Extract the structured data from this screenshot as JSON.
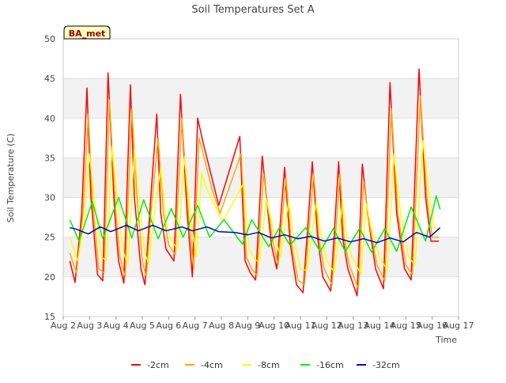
{
  "chart_data": {
    "type": "line",
    "title": "Soil Temperatures Set A",
    "xlabel": "Time",
    "ylabel": "Soil Temperature (C)",
    "ylim": [
      15,
      50
    ],
    "xlim": [
      2.0,
      17.0
    ],
    "yticks": [
      15,
      20,
      25,
      30,
      35,
      40,
      45,
      50
    ],
    "xticks": [
      2,
      3,
      4,
      5,
      6,
      7,
      8,
      9,
      10,
      11,
      12,
      13,
      14,
      15,
      16,
      17
    ],
    "xtick_labels": [
      "Aug 2",
      "Aug 3",
      "Aug 4",
      "Aug 5",
      "Aug 6",
      "Aug 7",
      "Aug 8",
      "Aug 9",
      "Aug 10",
      "Aug 11",
      "Aug 12",
      "Aug 13",
      "Aug 14",
      "Aug 15",
      "Aug 16",
      "Aug 17"
    ],
    "bands": [
      [
        20,
        25
      ],
      [
        30,
        35
      ],
      [
        40,
        45
      ]
    ],
    "grid": true,
    "legend_position": "bottom",
    "annotation": "BA_met",
    "series": [
      {
        "name": "-2cm",
        "color": "#ff0000",
        "x": [
          2.25,
          2.45,
          2.7,
          2.9,
          3.05,
          3.3,
          3.5,
          3.7,
          3.95,
          4.1,
          4.3,
          4.55,
          4.7,
          4.95,
          5.1,
          5.3,
          5.55,
          5.7,
          5.9,
          6.2,
          6.45,
          6.7,
          6.9,
          7.1,
          7.3,
          7.6,
          7.9,
          8.7,
          8.9,
          9.1,
          9.3,
          9.55,
          9.9,
          10.1,
          10.4,
          10.6,
          10.85,
          11.1,
          11.45,
          11.65,
          11.85,
          12.15,
          12.45,
          12.6,
          12.8,
          13.15,
          13.35,
          13.55,
          13.85,
          14.15,
          14.4,
          14.65,
          14.95,
          15.2,
          15.5,
          15.75,
          15.95,
          16.25
        ],
        "y": [
          22.0,
          19.3,
          28.0,
          43.8,
          30.0,
          20.3,
          19.5,
          45.7,
          28.0,
          22.0,
          19.2,
          44.2,
          30.0,
          21.0,
          19.0,
          29.0,
          40.5,
          28.0,
          23.5,
          22.0,
          43.0,
          28.0,
          20.0,
          40.0,
          37.0,
          33.0,
          29.0,
          37.7,
          22.0,
          20.5,
          19.6,
          35.2,
          24.0,
          21.0,
          33.8,
          24.5,
          19.0,
          18.0,
          34.5,
          25.0,
          20.0,
          18.2,
          34.5,
          25.0,
          21.0,
          17.6,
          34.2,
          28.0,
          21.0,
          18.5,
          44.5,
          28.0,
          21.0,
          19.6,
          46.2,
          30.0,
          24.5,
          24.5
        ]
      },
      {
        "name": "-4cm",
        "color": "#ffa500",
        "x": [
          2.25,
          2.5,
          2.75,
          2.95,
          3.1,
          3.35,
          3.55,
          3.75,
          4.0,
          4.15,
          4.35,
          4.6,
          4.8,
          5.0,
          5.15,
          5.35,
          5.6,
          5.8,
          6.0,
          6.25,
          6.5,
          6.75,
          6.95,
          7.15,
          7.35,
          7.65,
          7.95,
          8.75,
          8.95,
          9.15,
          9.35,
          9.6,
          9.95,
          10.15,
          10.45,
          10.65,
          10.9,
          11.15,
          11.5,
          11.7,
          11.9,
          12.2,
          12.5,
          12.65,
          12.85,
          13.2,
          13.4,
          13.6,
          13.9,
          14.2,
          14.45,
          14.7,
          15.0,
          15.25,
          15.55,
          15.8,
          16.0,
          16.25
        ],
        "y": [
          23.0,
          20.5,
          28.0,
          40.5,
          30.0,
          21.0,
          20.5,
          42.3,
          28.0,
          22.5,
          20.0,
          41.2,
          30.0,
          22.0,
          20.0,
          29.0,
          37.5,
          28.0,
          24.0,
          22.8,
          40.0,
          28.0,
          21.0,
          37.5,
          35.0,
          31.0,
          28.0,
          35.5,
          22.5,
          21.0,
          20.2,
          33.0,
          24.5,
          21.5,
          32.5,
          24.5,
          19.6,
          19.0,
          33.0,
          25.0,
          21.0,
          19.0,
          33.0,
          25.0,
          21.5,
          18.5,
          32.0,
          27.0,
          21.5,
          19.5,
          41.2,
          28.0,
          21.5,
          20.3,
          42.8,
          30.0,
          25.0,
          25.0
        ]
      },
      {
        "name": "-8cm",
        "color": "#ffff00",
        "x": [
          2.25,
          2.55,
          2.8,
          3.0,
          3.2,
          3.45,
          3.65,
          3.85,
          4.1,
          4.25,
          4.45,
          4.7,
          4.9,
          5.1,
          5.25,
          5.45,
          5.7,
          5.9,
          6.1,
          6.35,
          6.6,
          6.85,
          7.05,
          7.25,
          7.45,
          7.75,
          8.05,
          8.85,
          9.05,
          9.25,
          9.45,
          9.7,
          10.05,
          10.25,
          10.55,
          10.75,
          11.0,
          11.25,
          11.6,
          11.8,
          12.0,
          12.3,
          12.6,
          12.75,
          12.95,
          13.3,
          13.5,
          13.7,
          14.0,
          14.3,
          14.55,
          14.8,
          15.1,
          15.35,
          15.65,
          15.9,
          16.1,
          16.25
        ],
        "y": [
          25.0,
          22.0,
          27.0,
          35.5,
          29.0,
          22.5,
          22.0,
          36.5,
          28.0,
          23.5,
          21.5,
          36.0,
          29.0,
          23.0,
          21.5,
          28.0,
          33.8,
          27.0,
          24.5,
          23.5,
          35.2,
          27.0,
          22.5,
          33.0,
          31.0,
          29.0,
          27.0,
          31.8,
          23.5,
          22.3,
          21.8,
          29.8,
          24.8,
          22.5,
          29.5,
          24.8,
          21.0,
          20.8,
          29.5,
          25.0,
          22.0,
          20.5,
          29.5,
          25.0,
          22.5,
          20.3,
          29.2,
          26.0,
          22.5,
          20.8,
          35.5,
          28.0,
          22.5,
          21.5,
          37.2,
          30.0,
          26.0,
          26.0
        ]
      },
      {
        "name": "-16cm",
        "color": "#00ee00",
        "x": [
          2.25,
          2.6,
          3.1,
          3.5,
          4.1,
          4.6,
          5.05,
          5.6,
          6.1,
          6.55,
          7.1,
          7.55,
          8.1,
          8.8,
          9.15,
          9.8,
          10.2,
          10.6,
          11.2,
          11.75,
          12.25,
          12.7,
          13.25,
          13.7,
          14.2,
          14.65,
          15.2,
          15.75,
          16.15,
          16.3
        ],
        "y": [
          27.2,
          24.5,
          29.5,
          24.8,
          30.0,
          24.9,
          29.7,
          24.8,
          28.6,
          25.0,
          29.0,
          25.0,
          27.2,
          24.1,
          27.2,
          23.8,
          26.2,
          24.0,
          26.2,
          23.2,
          26.1,
          23.2,
          26.1,
          23.1,
          26.1,
          23.2,
          28.8,
          24.5,
          30.2,
          28.5
        ]
      },
      {
        "name": "-32cm",
        "color": "#0000cc",
        "x": [
          2.25,
          2.5,
          2.95,
          3.4,
          3.8,
          4.4,
          4.85,
          5.4,
          5.9,
          6.5,
          6.9,
          7.45,
          7.9,
          8.5,
          9.0,
          9.4,
          9.9,
          10.4,
          10.9,
          11.4,
          11.9,
          12.4,
          12.9,
          13.4,
          13.9,
          14.4,
          14.9,
          15.4,
          15.9,
          16.3
        ],
        "y": [
          26.2,
          26.0,
          25.4,
          26.3,
          25.7,
          26.5,
          25.8,
          26.5,
          25.8,
          26.3,
          25.8,
          26.3,
          25.7,
          25.6,
          25.3,
          25.6,
          24.9,
          25.3,
          24.8,
          25.1,
          24.5,
          24.9,
          24.4,
          24.8,
          24.3,
          24.9,
          24.4,
          25.6,
          25.0,
          26.2
        ]
      }
    ]
  }
}
